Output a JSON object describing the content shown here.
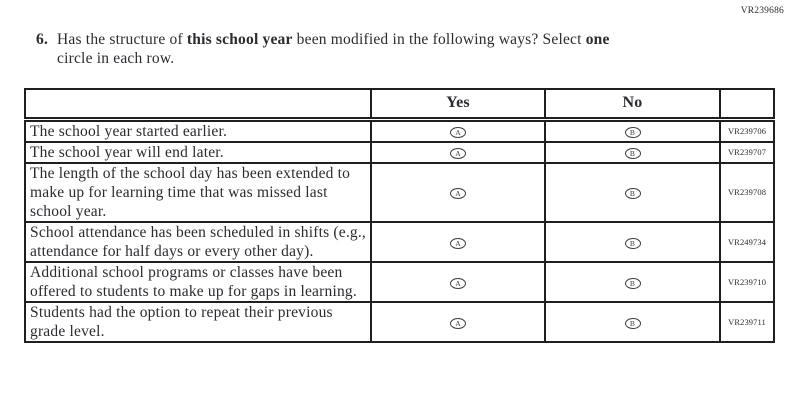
{
  "page": {
    "top_right_code": "VR239686"
  },
  "question": {
    "number": "6.",
    "line1_segments": [
      {
        "text": "Has the structure of ",
        "bold": false
      },
      {
        "text": "this school year",
        "bold": true
      },
      {
        "text": " been modified in the following ways? Select ",
        "bold": false
      },
      {
        "text": "one",
        "bold": true
      }
    ],
    "line2": "circle in each row."
  },
  "table": {
    "columns": [
      "",
      "Yes",
      "No",
      ""
    ],
    "option_labels": {
      "yes": "A",
      "no": "B"
    },
    "rows": [
      {
        "statement": "The school year started earlier.",
        "yes_option": "A",
        "no_option": "B",
        "code": "VR239706"
      },
      {
        "statement": "The school year will end later.",
        "yes_option": "A",
        "no_option": "B",
        "code": "VR239707"
      },
      {
        "statement": "The length of the school day has been extended to make up for learning time that was missed last school year.",
        "yes_option": "A",
        "no_option": "B",
        "code": "VR239708"
      },
      {
        "statement": "School attendance has been scheduled in shifts (e.g., attendance for half days or every other day).",
        "yes_option": "A",
        "no_option": "B",
        "code": "VR249734"
      },
      {
        "statement": "Additional school programs or classes have been offered to students to make up for gaps in learning.",
        "yes_option": "A",
        "no_option": "B",
        "code": "VR239710"
      },
      {
        "statement": "Students had the option to repeat their previous grade level.",
        "yes_option": "A",
        "no_option": "B",
        "code": "VR239711"
      }
    ]
  },
  "colors": {
    "text": "#2b2b30",
    "border": "#1f1f1f",
    "background": "#ffffff"
  }
}
